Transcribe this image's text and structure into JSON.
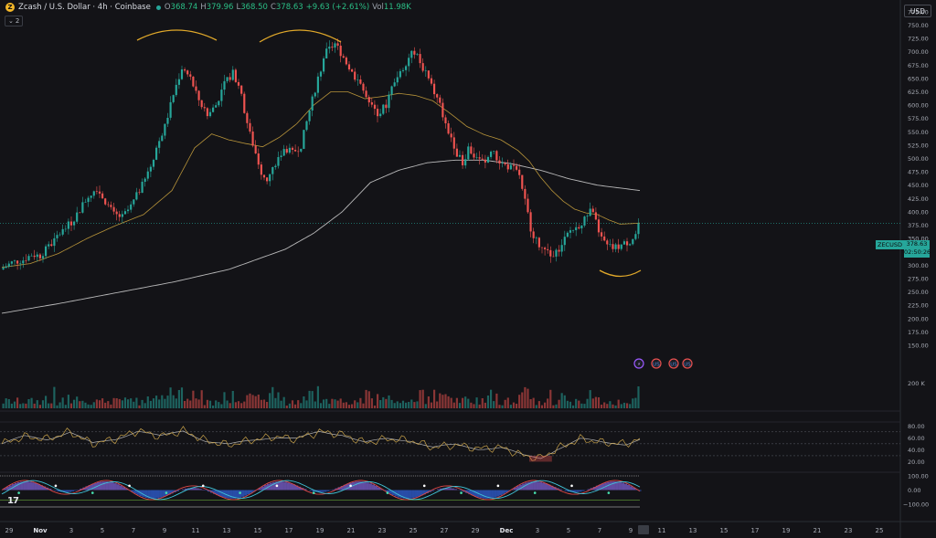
{
  "header": {
    "symbol": "Zcash / U.S. Dollar · 4h · Coinbase",
    "open_label": "O",
    "open": "368.74",
    "high_label": "H",
    "high": "379.96",
    "low_label": "L",
    "low": "368.50",
    "close_label": "C",
    "close": "378.63",
    "change": "+9.63 (+2.61%)",
    "vol_label": "Vol",
    "vol": "11.98K",
    "collapse_count": "2"
  },
  "currency_button": "USD",
  "last_price": {
    "symbol_tag": "ZECUSD",
    "price": "378.63",
    "countdown": "02:50:26"
  },
  "colors": {
    "up": "#26a69a",
    "down": "#ef5350",
    "ma_fast": "#b8943a",
    "ma_slow": "#d6d6d6",
    "background": "#131317"
  },
  "chart_data": {
    "type": "candlestick",
    "timeframe": "4h",
    "price_axis": {
      "ticks": [
        "775.00",
        "750.00",
        "725.00",
        "700.00",
        "675.00",
        "650.00",
        "625.00",
        "600.00",
        "575.00",
        "550.00",
        "525.00",
        "500.00",
        "475.00",
        "450.00",
        "425.00",
        "400.00",
        "375.00",
        "350.00",
        "325.00",
        "300.00",
        "275.00",
        "250.00",
        "225.00",
        "200.00",
        "175.00",
        "150.00"
      ],
      "range": [
        150,
        785
      ]
    },
    "time_axis": [
      "29",
      "Nov",
      "3",
      "5",
      "7",
      "9",
      "11",
      "13",
      "15",
      "17",
      "19",
      "21",
      "23",
      "25",
      "27",
      "29",
      "Dec",
      "3",
      "5",
      "7",
      "9",
      "11",
      "13",
      "15",
      "17",
      "19",
      "21",
      "23",
      "25"
    ],
    "price_path": [
      [
        0,
        292
      ],
      [
        4,
        305
      ],
      [
        8,
        310
      ],
      [
        11,
        320
      ],
      [
        14,
        318
      ],
      [
        18,
        340
      ],
      [
        21,
        360
      ],
      [
        25,
        380
      ],
      [
        28,
        405
      ],
      [
        31,
        430
      ],
      [
        34,
        445
      ],
      [
        37,
        420
      ],
      [
        40,
        395
      ],
      [
        43,
        390
      ],
      [
        46,
        410
      ],
      [
        49,
        440
      ],
      [
        52,
        470
      ],
      [
        55,
        520
      ],
      [
        58,
        560
      ],
      [
        61,
        620
      ],
      [
        64,
        670
      ],
      [
        67,
        650
      ],
      [
        70,
        610
      ],
      [
        73,
        580
      ],
      [
        76,
        600
      ],
      [
        79,
        640
      ],
      [
        82,
        660
      ],
      [
        84,
        640
      ],
      [
        86,
        590
      ],
      [
        88,
        545
      ],
      [
        90,
        510
      ],
      [
        92,
        475
      ],
      [
        94,
        460
      ],
      [
        97,
        490
      ],
      [
        100,
        520
      ],
      [
        103,
        510
      ],
      [
        106,
        525
      ],
      [
        109,
        590
      ],
      [
        112,
        650
      ],
      [
        115,
        700
      ],
      [
        118,
        715
      ],
      [
        121,
        690
      ],
      [
        124,
        660
      ],
      [
        127,
        640
      ],
      [
        130,
        600
      ],
      [
        133,
        585
      ],
      [
        136,
        600
      ],
      [
        138,
        640
      ],
      [
        141,
        660
      ],
      [
        144,
        690
      ],
      [
        146,
        700
      ],
      [
        149,
        670
      ],
      [
        152,
        635
      ],
      [
        155,
        600
      ],
      [
        157,
        560
      ],
      [
        159,
        540
      ],
      [
        161,
        510
      ],
      [
        163,
        490
      ],
      [
        165,
        520
      ],
      [
        167,
        505
      ],
      [
        169,
        500
      ],
      [
        171,
        490
      ],
      [
        173,
        515
      ],
      [
        175,
        500
      ],
      [
        177,
        490
      ],
      [
        179,
        485
      ],
      [
        181,
        480
      ],
      [
        183,
        470
      ],
      [
        185,
        420
      ],
      [
        187,
        370
      ],
      [
        189,
        345
      ],
      [
        191,
        330
      ],
      [
        193,
        325
      ],
      [
        195,
        315
      ],
      [
        197,
        330
      ],
      [
        199,
        350
      ],
      [
        201,
        365
      ],
      [
        203,
        370
      ],
      [
        205,
        380
      ],
      [
        207,
        390
      ],
      [
        208,
        405
      ],
      [
        210,
        380
      ],
      [
        212,
        350
      ],
      [
        214,
        335
      ],
      [
        216,
        332
      ],
      [
        218,
        335
      ],
      [
        220,
        340
      ],
      [
        222,
        345
      ],
      [
        224,
        358
      ],
      [
        225,
        378.63
      ]
    ],
    "candle_days": 225,
    "ma_fast_path": [
      [
        0,
        296
      ],
      [
        10,
        303
      ],
      [
        20,
        322
      ],
      [
        30,
        350
      ],
      [
        40,
        374
      ],
      [
        50,
        395
      ],
      [
        60,
        440
      ],
      [
        68,
        520
      ],
      [
        74,
        546
      ],
      [
        80,
        535
      ],
      [
        86,
        528
      ],
      [
        92,
        522
      ],
      [
        98,
        540
      ],
      [
        104,
        565
      ],
      [
        110,
        600
      ],
      [
        116,
        625
      ],
      [
        122,
        625
      ],
      [
        128,
        612
      ],
      [
        134,
        616
      ],
      [
        140,
        622
      ],
      [
        146,
        618
      ],
      [
        152,
        608
      ],
      [
        158,
        585
      ],
      [
        164,
        560
      ],
      [
        170,
        545
      ],
      [
        176,
        535
      ],
      [
        182,
        515
      ],
      [
        186,
        495
      ],
      [
        190,
        465
      ],
      [
        194,
        440
      ],
      [
        198,
        420
      ],
      [
        202,
        405
      ],
      [
        206,
        398
      ],
      [
        210,
        395
      ],
      [
        214,
        385
      ],
      [
        218,
        377
      ],
      [
        222,
        378
      ],
      [
        225,
        379
      ]
    ],
    "ma_slow_path": [
      [
        0,
        210
      ],
      [
        20,
        228
      ],
      [
        40,
        248
      ],
      [
        60,
        268
      ],
      [
        80,
        292
      ],
      [
        100,
        330
      ],
      [
        110,
        360
      ],
      [
        120,
        400
      ],
      [
        130,
        455
      ],
      [
        140,
        478
      ],
      [
        150,
        492
      ],
      [
        160,
        497
      ],
      [
        170,
        497
      ],
      [
        180,
        490
      ],
      [
        190,
        478
      ],
      [
        200,
        462
      ],
      [
        210,
        450
      ],
      [
        225,
        440
      ]
    ],
    "volume": {
      "axis_label": "200 K"
    },
    "rsi": {
      "ticks": [
        "80.00",
        "60.00",
        "40.00",
        "20.00"
      ],
      "overbought": 70,
      "oversold": 30,
      "mid": 50,
      "path": [
        [
          0,
          50
        ],
        [
          8,
          62
        ],
        [
          16,
          58
        ],
        [
          24,
          70
        ],
        [
          32,
          50
        ],
        [
          40,
          58
        ],
        [
          48,
          72
        ],
        [
          56,
          62
        ],
        [
          64,
          72
        ],
        [
          72,
          55
        ],
        [
          80,
          48
        ],
        [
          88,
          56
        ],
        [
          96,
          62
        ],
        [
          104,
          58
        ],
        [
          112,
          70
        ],
        [
          120,
          66
        ],
        [
          128,
          52
        ],
        [
          136,
          58
        ],
        [
          144,
          56
        ],
        [
          152,
          44
        ],
        [
          160,
          48
        ],
        [
          168,
          42
        ],
        [
          176,
          44
        ],
        [
          184,
          30
        ],
        [
          190,
          26
        ],
        [
          196,
          42
        ],
        [
          204,
          58
        ],
        [
          212,
          52
        ],
        [
          220,
          50
        ],
        [
          225,
          58
        ]
      ]
    },
    "oscillator": {
      "ticks": [
        "100.00",
        "0.00",
        "−100.00"
      ]
    },
    "event_markers": [
      "⚡",
      "US",
      "US",
      "US"
    ],
    "annotations": [
      "top-arc",
      "top-arc",
      "bottom-arc"
    ]
  }
}
